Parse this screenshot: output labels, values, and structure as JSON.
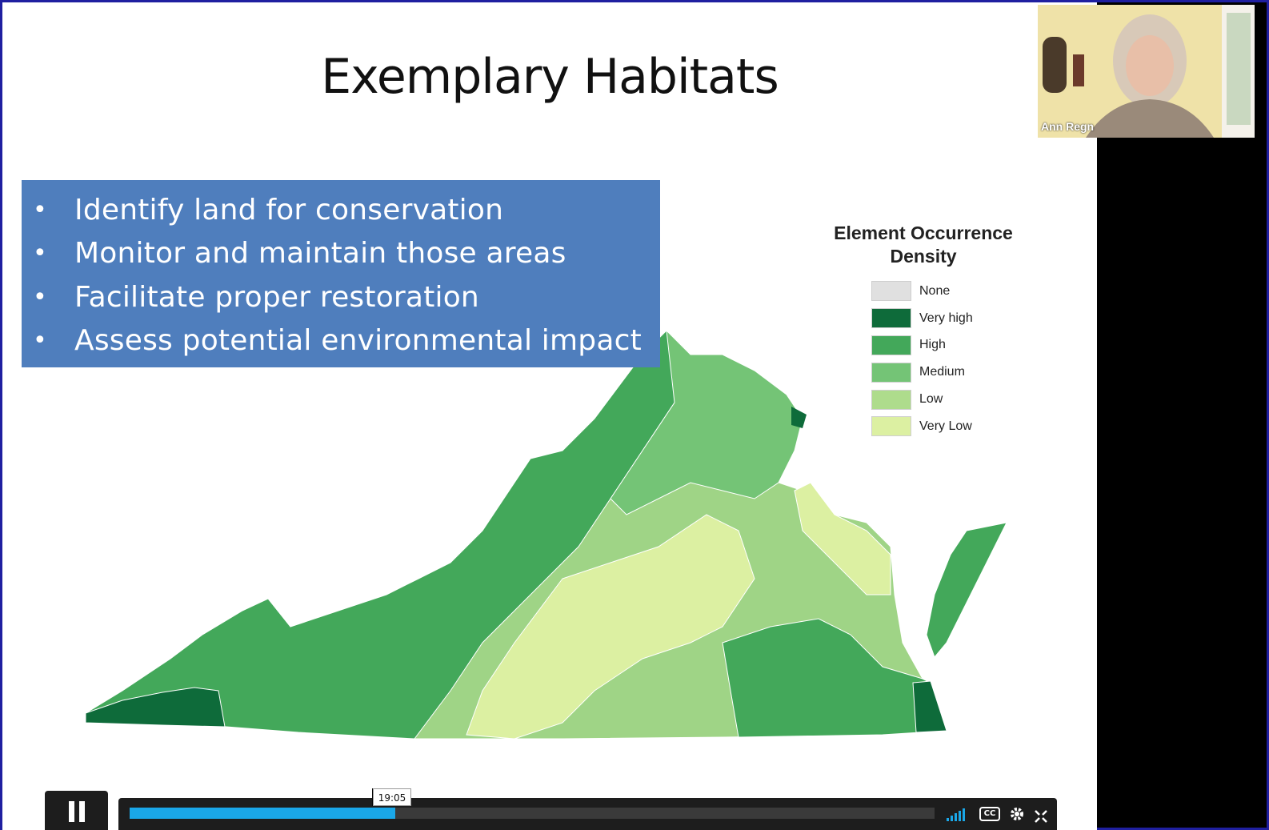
{
  "slide": {
    "title": "Exemplary Habitats",
    "bullets": [
      "Identify land for conservation",
      "Monitor and maintain those areas",
      "Facilitate proper restoration",
      "Assess potential environmental impact"
    ],
    "bullet_glyph": "•"
  },
  "legend": {
    "title": "Element Occurrence Density",
    "items": [
      {
        "label": "None",
        "color": "#e0e0e0"
      },
      {
        "label": "Very high",
        "color": "#0e6b3a"
      },
      {
        "label": "High",
        "color": "#43a85a"
      },
      {
        "label": "Medium",
        "color": "#74c476"
      },
      {
        "label": "Low",
        "color": "#aedc8c"
      },
      {
        "label": "Very Low",
        "color": "#dcf0a2"
      }
    ]
  },
  "participant": {
    "name": "Ann Regn"
  },
  "player": {
    "current_time": "19:05",
    "progress_fraction": 0.33,
    "accent_color": "#1aa7e8",
    "icons": [
      "pause-icon",
      "volume-icon",
      "cc-icon",
      "settings-icon",
      "fullscreen-exit-icon"
    ],
    "cc_label": "CC"
  }
}
